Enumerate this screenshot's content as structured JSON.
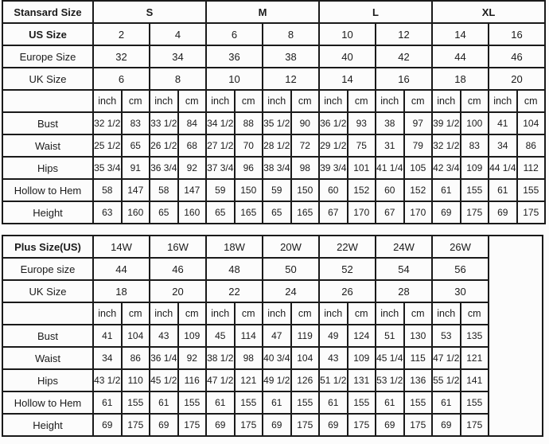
{
  "chart_data": [
    {
      "type": "table",
      "title": "Stansard Size",
      "size_groups": [
        "S",
        "M",
        "L",
        "XL"
      ],
      "header_rows": [
        {
          "label": "US Size",
          "values": [
            "2",
            "4",
            "6",
            "8",
            "10",
            "12",
            "14",
            "16"
          ]
        },
        {
          "label": "Europe Size",
          "values": [
            "32",
            "34",
            "36",
            "38",
            "40",
            "42",
            "44",
            "46"
          ]
        },
        {
          "label": "UK Size",
          "values": [
            "6",
            "8",
            "10",
            "12",
            "14",
            "16",
            "18",
            "20"
          ]
        }
      ],
      "unit_labels": [
        "inch",
        "cm"
      ],
      "measure_rows": [
        {
          "label": "Bust",
          "pairs": [
            [
              "32 1/2",
              "83"
            ],
            [
              "33 1/2",
              "84"
            ],
            [
              "34 1/2",
              "88"
            ],
            [
              "35 1/2",
              "90"
            ],
            [
              "36 1/2",
              "93"
            ],
            [
              "38",
              "97"
            ],
            [
              "39 1/2",
              "100"
            ],
            [
              "41",
              "104"
            ]
          ]
        },
        {
          "label": "Waist",
          "pairs": [
            [
              "25 1/2",
              "65"
            ],
            [
              "26 1/2",
              "68"
            ],
            [
              "27 1/2",
              "70"
            ],
            [
              "28 1/2",
              "72"
            ],
            [
              "29 1/2",
              "75"
            ],
            [
              "31",
              "79"
            ],
            [
              "32 1/2",
              "83"
            ],
            [
              "34",
              "86"
            ]
          ]
        },
        {
          "label": "Hips",
          "pairs": [
            [
              "35 3/4",
              "91"
            ],
            [
              "36 3/4",
              "92"
            ],
            [
              "37 3/4",
              "96"
            ],
            [
              "38 3/4",
              "98"
            ],
            [
              "39 3/4",
              "101"
            ],
            [
              "41 1/4",
              "105"
            ],
            [
              "42 3/4",
              "109"
            ],
            [
              "44 1/4",
              "112"
            ]
          ]
        },
        {
          "label": "Hollow to Hem",
          "pairs": [
            [
              "58",
              "147"
            ],
            [
              "58",
              "147"
            ],
            [
              "59",
              "150"
            ],
            [
              "59",
              "150"
            ],
            [
              "60",
              "152"
            ],
            [
              "60",
              "152"
            ],
            [
              "61",
              "155"
            ],
            [
              "61",
              "155"
            ]
          ]
        },
        {
          "label": "Height",
          "pairs": [
            [
              "63",
              "160"
            ],
            [
              "65",
              "160"
            ],
            [
              "65",
              "165"
            ],
            [
              "65",
              "165"
            ],
            [
              "67",
              "170"
            ],
            [
              "67",
              "170"
            ],
            [
              "69",
              "175"
            ],
            [
              "69",
              "175"
            ]
          ]
        }
      ]
    },
    {
      "type": "table",
      "title": "Plus Size(US)",
      "size_groups": [
        "14W",
        "16W",
        "18W",
        "20W",
        "22W",
        "24W",
        "26W"
      ],
      "header_rows": [
        {
          "label": "Europe size",
          "values": [
            "44",
            "46",
            "48",
            "50",
            "52",
            "54",
            "56"
          ]
        },
        {
          "label": "UK Size",
          "values": [
            "18",
            "20",
            "22",
            "24",
            "26",
            "28",
            "30"
          ]
        }
      ],
      "unit_labels": [
        "inch",
        "cm"
      ],
      "measure_rows": [
        {
          "label": "Bust",
          "pairs": [
            [
              "41",
              "104"
            ],
            [
              "43",
              "109"
            ],
            [
              "45",
              "114"
            ],
            [
              "47",
              "119"
            ],
            [
              "49",
              "124"
            ],
            [
              "51",
              "130"
            ],
            [
              "53",
              "135"
            ]
          ]
        },
        {
          "label": "Waist",
          "pairs": [
            [
              "34",
              "86"
            ],
            [
              "36 1/4",
              "92"
            ],
            [
              "38 1/2",
              "98"
            ],
            [
              "40 3/4",
              "104"
            ],
            [
              "43",
              "109"
            ],
            [
              "45 1/4",
              "115"
            ],
            [
              "47 1/2",
              "121"
            ]
          ]
        },
        {
          "label": "Hips",
          "pairs": [
            [
              "43 1/2",
              "110"
            ],
            [
              "45 1/2",
              "116"
            ],
            [
              "47 1/2",
              "121"
            ],
            [
              "49 1/2",
              "126"
            ],
            [
              "51 1/2",
              "131"
            ],
            [
              "53 1/2",
              "136"
            ],
            [
              "55 1/2",
              "141"
            ]
          ]
        },
        {
          "label": "Hollow to Hem",
          "pairs": [
            [
              "61",
              "155"
            ],
            [
              "61",
              "155"
            ],
            [
              "61",
              "155"
            ],
            [
              "61",
              "155"
            ],
            [
              "61",
              "155"
            ],
            [
              "61",
              "155"
            ],
            [
              "61",
              "155"
            ]
          ]
        },
        {
          "label": "Height",
          "pairs": [
            [
              "69",
              "175"
            ],
            [
              "69",
              "175"
            ],
            [
              "69",
              "175"
            ],
            [
              "69",
              "175"
            ],
            [
              "69",
              "175"
            ],
            [
              "69",
              "175"
            ],
            [
              "69",
              "175"
            ]
          ]
        }
      ]
    }
  ]
}
